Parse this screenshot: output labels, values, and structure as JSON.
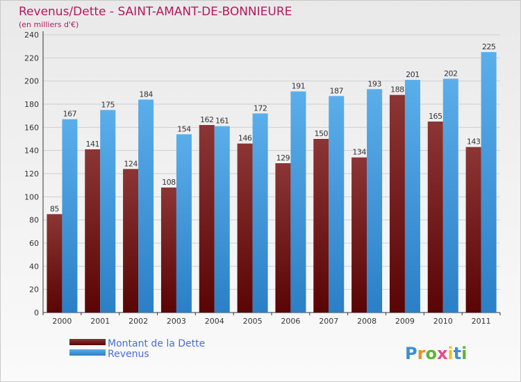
{
  "chart_data": {
    "type": "bar",
    "title": "Revenus/Dette - SAINT-AMANT-DE-BONNIEURE",
    "subtitle": "(en milliers d'€)",
    "categories": [
      "2000",
      "2001",
      "2002",
      "2003",
      "2004",
      "2005",
      "2006",
      "2007",
      "2008",
      "2009",
      "2010",
      "2011"
    ],
    "series": [
      {
        "name": "Montant de la Dette",
        "color": "#7a1f1f",
        "values": [
          85,
          141,
          124,
          108,
          162,
          146,
          129,
          150,
          134,
          188,
          165,
          143
        ]
      },
      {
        "name": "Revenus",
        "color": "#4aa3e6",
        "values": [
          167,
          175,
          184,
          154,
          161,
          172,
          191,
          187,
          193,
          201,
          202,
          225
        ]
      }
    ],
    "ylim": [
      0,
      240
    ],
    "yticks": [
      0,
      20,
      40,
      60,
      80,
      100,
      120,
      140,
      160,
      180,
      200,
      220,
      240
    ],
    "grid": true,
    "legend_position": "bottom-left"
  },
  "brand": {
    "letters": [
      "P",
      "r",
      "o",
      "x",
      "i",
      "t",
      "i"
    ],
    "colors": [
      "#3a8fd6",
      "#f28c1e",
      "#5ab533",
      "#e04b8f",
      "#f2c21e",
      "#3a8fd6",
      "#5ab533"
    ]
  }
}
